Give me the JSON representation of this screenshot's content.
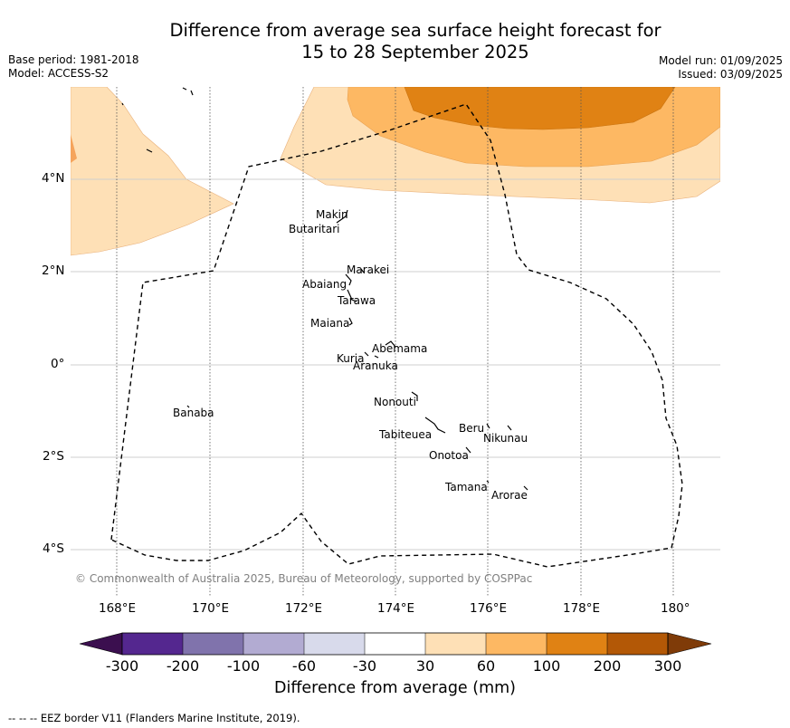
{
  "header": {
    "title_line1": "Difference from average sea surface height forecast for",
    "title_line2": "15 to 28 September 2025",
    "base_period": "Base period: 1981-2018",
    "model": "Model: ACCESS-S2",
    "model_run": "Model run: 01/09/2025",
    "issued": "Issued: 03/09/2025"
  },
  "map": {
    "lon_labels": [
      "168°E",
      "170°E",
      "172°E",
      "174°E",
      "176°E",
      "178°E",
      "180°"
    ],
    "lat_labels": [
      "4°N",
      "2°N",
      "0°",
      "2°S",
      "4°S"
    ],
    "places": [
      {
        "name": "Makin"
      },
      {
        "name": "Butaritari"
      },
      {
        "name": "Marakei"
      },
      {
        "name": "Abaiang"
      },
      {
        "name": "Tarawa"
      },
      {
        "name": "Maiana"
      },
      {
        "name": "Abemama"
      },
      {
        "name": "Kuria"
      },
      {
        "name": "Aranuka"
      },
      {
        "name": "Nonouti"
      },
      {
        "name": "Banaba"
      },
      {
        "name": "Beru"
      },
      {
        "name": "Nikunau"
      },
      {
        "name": "Tabiteuea"
      },
      {
        "name": "Onotoa"
      },
      {
        "name": "Tamana"
      },
      {
        "name": "Arorae"
      }
    ],
    "copyright": "© Commonwealth of Australia 2025, Bureau of Meteorology, supported by COSPPac"
  },
  "colorbar": {
    "ticks": [
      "-300",
      "-200",
      "-100",
      "-60",
      "-30",
      "30",
      "60",
      "100",
      "200",
      "300"
    ],
    "colors": [
      "#3b0f4f",
      "#54278f",
      "#8073ac",
      "#b2abd2",
      "#d8daeb",
      "#ffffff",
      "#fee0b6",
      "#fdb863",
      "#e08214",
      "#b35806",
      "#7f3b08"
    ],
    "label": "Difference from average (mm)"
  },
  "footer": {
    "eez_note": "-- -- -- EEZ border V11 (Flanders Marine Institute, 2019)."
  }
}
